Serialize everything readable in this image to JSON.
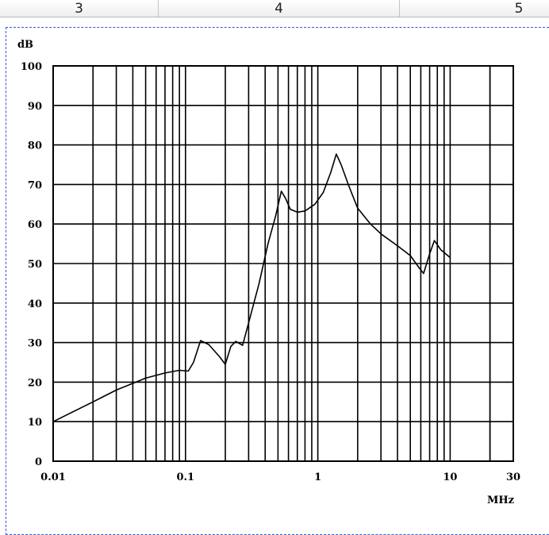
{
  "ruler": {
    "columns": [
      {
        "label": "3"
      },
      {
        "label": "4"
      },
      {
        "label": "5"
      }
    ]
  },
  "colors": {
    "frame": "#3a53d4",
    "grid": "#000000",
    "curve": "#000000"
  },
  "chart_data": {
    "type": "line",
    "title": "",
    "ylabel": "dB",
    "xlabel": "MHz",
    "xscale": "log",
    "xlim": [
      0.01,
      30
    ],
    "ylim": [
      0,
      100
    ],
    "x_ticks": [
      {
        "value": 0.01,
        "label": "0.01"
      },
      {
        "value": 0.1,
        "label": "0.1"
      },
      {
        "value": 1,
        "label": "1"
      },
      {
        "value": 10,
        "label": "10"
      },
      {
        "value": 30,
        "label": "30"
      }
    ],
    "y_ticks": [
      0,
      10,
      20,
      30,
      40,
      50,
      60,
      70,
      80,
      90,
      100
    ],
    "grid": true,
    "series": [
      {
        "x": [
          0.01,
          0.02,
          0.03,
          0.05,
          0.07,
          0.09,
          0.105,
          0.115,
          0.13,
          0.15,
          0.18,
          0.2,
          0.22,
          0.24,
          0.27,
          0.3,
          0.36,
          0.42,
          0.48,
          0.53,
          0.57,
          0.62,
          0.7,
          0.8,
          0.95,
          1.1,
          1.25,
          1.38,
          1.5,
          1.7,
          2.0,
          2.5,
          3.0,
          4.0,
          5.0,
          5.8,
          6.3,
          7.0,
          7.6,
          8.5,
          10.0
        ],
        "y": [
          10,
          15,
          18,
          21,
          22.3,
          23,
          22.8,
          25,
          30.5,
          29.5,
          26.5,
          24.5,
          29,
          30.3,
          29.3,
          35,
          45,
          55,
          62,
          68.3,
          66.5,
          63.7,
          63,
          63.3,
          65,
          68,
          73,
          77.7,
          75,
          70,
          64,
          60,
          57.5,
          54.5,
          52,
          49,
          47.5,
          52.5,
          55.8,
          53.5,
          51.5
        ]
      }
    ]
  }
}
